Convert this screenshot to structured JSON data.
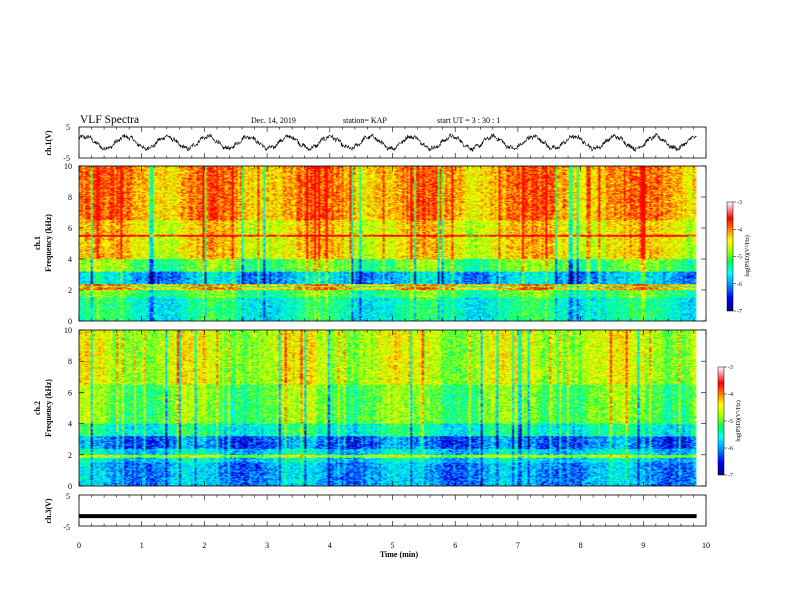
{
  "header": {
    "title": "VLF Spectra",
    "date": "Dec. 14, 2019",
    "station": "station= KAP",
    "start_ut": "start  UT  =   3  : 30 : 1"
  },
  "chart_data": [
    {
      "type": "line",
      "id": "ch1-waveform",
      "ylabel": "ch.1(V)",
      "ylim": [
        -5,
        5
      ],
      "y_ticks": [
        "5",
        "-5"
      ],
      "xlim": [
        0,
        10
      ],
      "approx_oscillation_period_min": 0.65,
      "approx_amplitude_v": 1.9
    },
    {
      "type": "heatmap",
      "id": "ch1-spectrogram",
      "ylabel": "ch.1\nFrequency (kHz)",
      "ylim": [
        0,
        10
      ],
      "y_ticks": [
        "0",
        "2",
        "4",
        "6",
        "8",
        "10"
      ],
      "xlim": [
        0,
        9.85
      ],
      "colorbar": {
        "label": "log(PSD)(V²/Hz)",
        "range": [
          -7,
          -3
        ],
        "ticks": [
          "-3",
          "-4",
          "-5",
          "-6",
          "-7"
        ],
        "colors": [
          "#000080",
          "#0000ff",
          "#00a0ff",
          "#00ffff",
          "#00ff60",
          "#aaff00",
          "#ffff00",
          "#ff8000",
          "#ff0000",
          "#ffffff"
        ]
      },
      "line_kHz": [
        5.5,
        2.3,
        2.1
      ]
    },
    {
      "type": "heatmap",
      "id": "ch2-spectrogram",
      "ylabel": "ch.2\nFrequency (kHz)",
      "ylim": [
        0,
        10
      ],
      "y_ticks": [
        "0",
        "2",
        "4",
        "6",
        "8",
        "10"
      ],
      "xlim": [
        0,
        9.85
      ],
      "colorbar": {
        "label": "log(PSD)(V²/Hz)",
        "range": [
          -7,
          -3
        ],
        "ticks": [
          "-3",
          "-4",
          "-5",
          "-6",
          "-7"
        ],
        "colors": [
          "#000080",
          "#0000ff",
          "#00a0ff",
          "#00ffff",
          "#00ff60",
          "#aaff00",
          "#ffff00",
          "#ff8000",
          "#ff0000",
          "#ffffff"
        ]
      },
      "line_kHz": [
        1.9
      ]
    },
    {
      "type": "line",
      "id": "ch3-waveform",
      "ylabel": "ch.3(V)",
      "ylim": [
        -5,
        5
      ],
      "y_ticks": [
        "5",
        "-5"
      ],
      "xlim": [
        0,
        10
      ],
      "constant_value_v": -1.8
    }
  ],
  "xaxis": {
    "label": "Time  (min)",
    "ticks": [
      "0",
      "1",
      "2",
      "3",
      "4",
      "5",
      "6",
      "7",
      "8",
      "9",
      "10"
    ],
    "range": [
      0,
      10
    ]
  }
}
